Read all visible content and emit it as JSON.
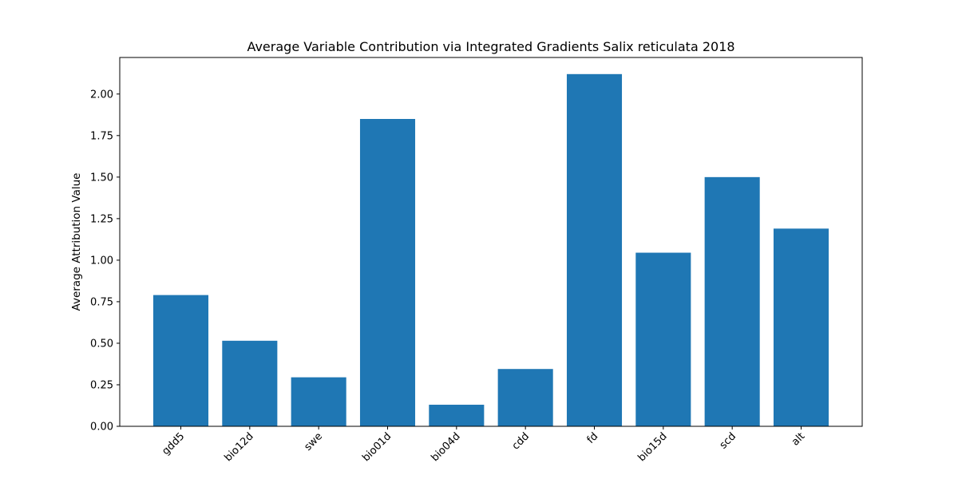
{
  "chart_data": {
    "type": "bar",
    "title": "Average Variable Contribution via Integrated Gradients Salix reticulata 2018",
    "xlabel": "",
    "ylabel": "Average Attribution Value",
    "categories": [
      "gdd5",
      "bio12d",
      "swe",
      "bio01d",
      "bio04d",
      "cdd",
      "fd",
      "bio15d",
      "scd",
      "alt"
    ],
    "values": [
      0.79,
      0.515,
      0.295,
      1.85,
      0.13,
      0.345,
      2.12,
      1.045,
      1.5,
      1.19
    ],
    "ylim": [
      0,
      2.22
    ],
    "yticks": [
      "0.00",
      "0.25",
      "0.50",
      "0.75",
      "1.00",
      "1.25",
      "1.50",
      "1.75",
      "2.00"
    ],
    "bar_color": "#1f77b4",
    "grid": false,
    "legend": false
  }
}
